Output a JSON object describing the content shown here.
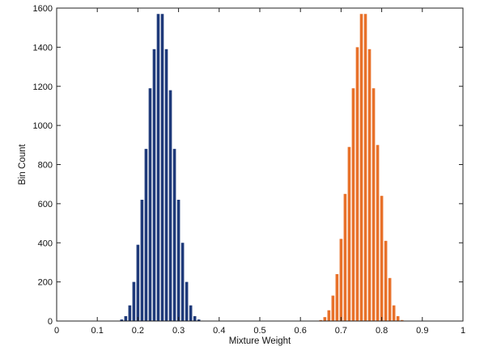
{
  "chart_data": {
    "type": "bar",
    "title": "",
    "xlabel": "Mixture Weight",
    "ylabel": "Bin Count",
    "xlim": [
      0,
      1
    ],
    "ylim": [
      0,
      1600
    ],
    "grid": false,
    "xticks": [
      "0",
      "0.1",
      "0.2",
      "0.3",
      "0.4",
      "0.5",
      "0.6",
      "0.7",
      "0.8",
      "0.9",
      "1"
    ],
    "yticks": [
      "0",
      "200",
      "400",
      "600",
      "800",
      "1000",
      "1200",
      "1400",
      "1600"
    ],
    "series": [
      {
        "color": "#1f3a7a",
        "x": [
          0.15,
          0.16,
          0.17,
          0.18,
          0.19,
          0.2,
          0.21,
          0.22,
          0.23,
          0.24,
          0.25,
          0.26,
          0.27,
          0.28,
          0.29,
          0.3,
          0.31,
          0.32,
          0.33,
          0.34,
          0.35
        ],
        "values": [
          2,
          8,
          25,
          80,
          200,
          390,
          620,
          880,
          1190,
          1390,
          1570,
          1570,
          1390,
          1180,
          880,
          620,
          400,
          200,
          80,
          25,
          8
        ]
      },
      {
        "color": "#e8712a",
        "x": [
          0.65,
          0.66,
          0.67,
          0.68,
          0.69,
          0.7,
          0.71,
          0.72,
          0.73,
          0.74,
          0.75,
          0.76,
          0.77,
          0.78,
          0.79,
          0.8,
          0.81,
          0.82,
          0.83,
          0.84,
          0.85
        ],
        "values": [
          5,
          20,
          55,
          130,
          240,
          420,
          650,
          890,
          1190,
          1400,
          1570,
          1570,
          1390,
          1190,
          900,
          640,
          410,
          220,
          80,
          25,
          5
        ]
      }
    ]
  }
}
